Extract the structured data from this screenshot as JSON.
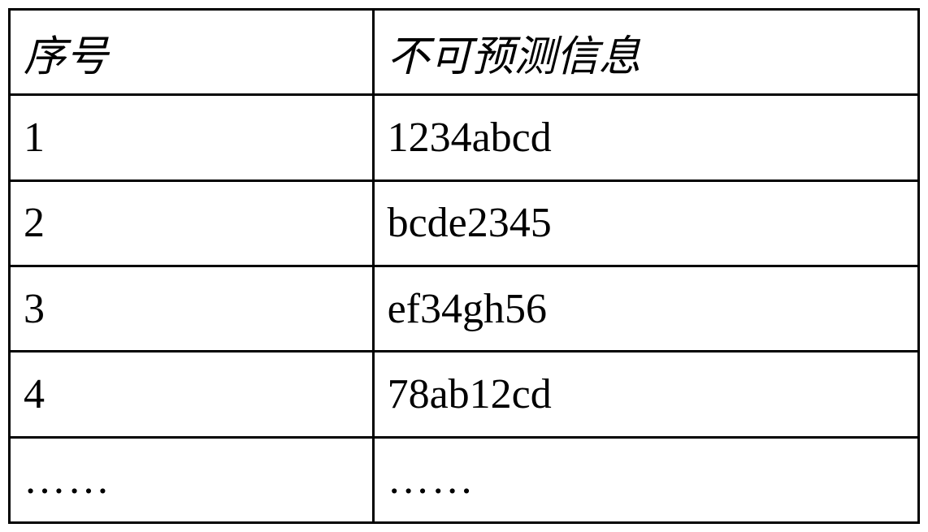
{
  "table": {
    "type": "table",
    "columns": [
      {
        "label": "序号",
        "width": "40%",
        "align": "left"
      },
      {
        "label": "不可预测信息",
        "width": "60%",
        "align": "left"
      }
    ],
    "rows": [
      {
        "serial": "1",
        "content": "1234abcd"
      },
      {
        "serial": "2",
        "content": "bcde2345"
      },
      {
        "serial": "3",
        "content": "ef34gh56"
      },
      {
        "serial": "4",
        "content": "78ab12cd"
      },
      {
        "serial": "……",
        "content": "……"
      }
    ],
    "styling": {
      "border_color": "#000000",
      "border_width": 3,
      "background_color": "#ffffff",
      "header_font_family": "KaiTi",
      "header_font_style": "italic",
      "header_fontsize": 52,
      "data_font_family": "Times New Roman",
      "data_fontsize": 52,
      "text_color": "#000000",
      "cell_padding": "12px 16px"
    }
  }
}
